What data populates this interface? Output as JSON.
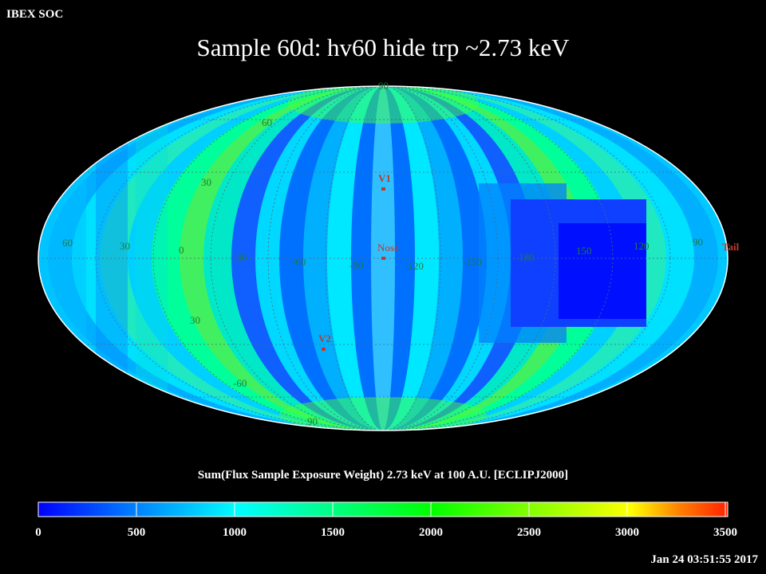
{
  "header": {
    "corner_label": "IBEX SOC",
    "title": "Sample 60d: hv60 hide trp ~2.73 keV"
  },
  "map": {
    "projection": "Mollweide (ecliptic)",
    "lat_labels_north": [
      "90",
      "60",
      "30"
    ],
    "lat_labels_south": [
      "30",
      "-60",
      "90"
    ],
    "lon_labels": [
      "60",
      "30",
      "0",
      "-30",
      "-60",
      "-90",
      "-120",
      "-150",
      "180",
      "150",
      "120",
      "90"
    ],
    "markers": {
      "v1": "V1",
      "nose": "Nose",
      "v2": "V2",
      "tail": "Tail"
    },
    "marker_color": "#c0392b",
    "grid_label_color": "#1f7a3a"
  },
  "colorbar": {
    "title": "Sum(Flux Sample Exposure Weight)  2.73 keV at 100 A.U. [ECLIPJ2000]",
    "ticks": [
      "0",
      "500",
      "1000",
      "1500",
      "2000",
      "2500",
      "3000",
      "3500"
    ],
    "min": 0,
    "max": 3500,
    "colors": [
      "#0000ff",
      "#0080ff",
      "#00ffff",
      "#00ff80",
      "#00ff00",
      "#80ff00",
      "#ffff00",
      "#ff8000",
      "#ff0000"
    ]
  },
  "footer": {
    "timestamp": "Jan 24 03:51:55 2017"
  }
}
